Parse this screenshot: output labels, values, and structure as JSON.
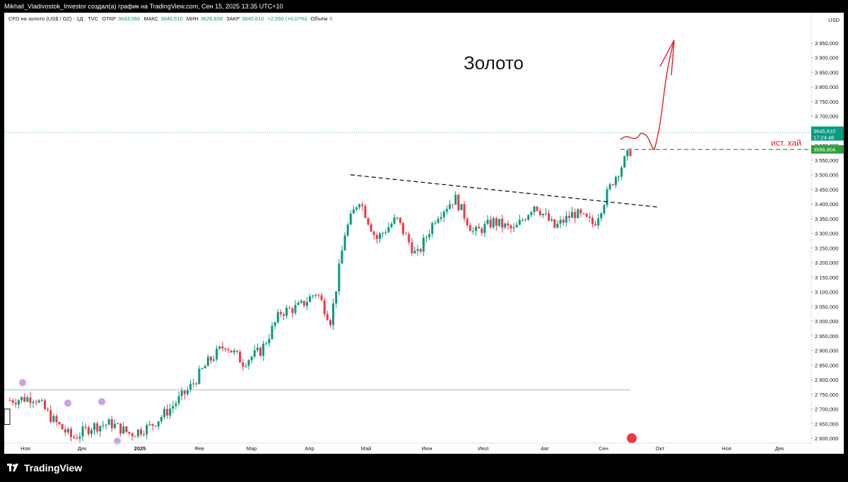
{
  "header": {
    "credit": "Mikhail_Vladivostok_Investor создал(а) график на TradingView.com, Сен 15, 2025 13:35 UTC+10"
  },
  "legend": {
    "symbol": "CFD на золото (US$ / OZ) · 1Д · TVC",
    "open_label": "ОТКР",
    "open": "3643,060",
    "high_label": "МАКС",
    "high": "3646,510",
    "low_label": "МИН",
    "low": "3626,839",
    "close_label": "ЗАКР",
    "close": "3645,610",
    "change": "+2,550 (+0,07%)",
    "volume_label": "Объем",
    "volume": "0"
  },
  "annotation": {
    "title": "Золото",
    "hist_high_label": "ист. хай"
  },
  "price_axis": {
    "currency": "USD",
    "current_price": "3645,610",
    "countdown": "17:24:48",
    "level_price": "3586,804"
  },
  "footer": {
    "brand": "TradingView",
    "logo_icon": "tradingview-logo-icon"
  },
  "colors": {
    "up": "#089981",
    "down": "#f23645",
    "annotation_red": "#e0202f",
    "hist_high_green": "#2e9e3e",
    "background": "#ffffff"
  },
  "chart_data": {
    "type": "candlestick",
    "title": "Золото",
    "y_unit": "USD",
    "ylim": [
      2580,
      3980
    ],
    "y_ticks": [
      2600,
      2650,
      2700,
      2750,
      2800,
      2850,
      2900,
      2950,
      3000,
      3050,
      3100,
      3150,
      3200,
      3250,
      3300,
      3350,
      3400,
      3450,
      3500,
      3550,
      3600,
      3650,
      3700,
      3750,
      3800,
      3850,
      3900,
      3950
    ],
    "x_ticks": [
      "Ноя",
      "Дек",
      "2025",
      "Фев",
      "Мар",
      "Апр",
      "Май",
      "Июн",
      "Июл",
      "Авг",
      "Сен",
      "Окт",
      "Ноя",
      "Дек"
    ],
    "close_path": [
      {
        "month": "Ноя",
        "close": 2740
      },
      {
        "month": "Ноя",
        "close": 2660
      },
      {
        "month": "Ноя",
        "close": 2600
      },
      {
        "month": "Дек",
        "close": 2640
      },
      {
        "month": "Дек",
        "close": 2650
      },
      {
        "month": "Дек",
        "close": 2615
      },
      {
        "month": "2025",
        "close": 2640
      },
      {
        "month": "2025",
        "close": 2700
      },
      {
        "month": "2025",
        "close": 2770
      },
      {
        "month": "Фев",
        "close": 2860
      },
      {
        "month": "Фев",
        "close": 2920
      },
      {
        "month": "Фев",
        "close": 2860
      },
      {
        "month": "Мар",
        "close": 2900
      },
      {
        "month": "Мар",
        "close": 3030
      },
      {
        "month": "Мар",
        "close": 3050
      },
      {
        "month": "Апр",
        "close": 3100
      },
      {
        "month": "Апр",
        "close": 3000
      },
      {
        "month": "Апр",
        "close": 3300
      },
      {
        "month": "Апр",
        "close": 3420
      },
      {
        "month": "Май",
        "close": 3280
      },
      {
        "month": "Май",
        "close": 3350
      },
      {
        "month": "Май",
        "close": 3220
      },
      {
        "month": "Июн",
        "close": 3360
      },
      {
        "month": "Июн",
        "close": 3420
      },
      {
        "month": "Июн",
        "close": 3300
      },
      {
        "month": "Июл",
        "close": 3340
      },
      {
        "month": "Июл",
        "close": 3310
      },
      {
        "month": "Июл",
        "close": 3400
      },
      {
        "month": "Авг",
        "close": 3320
      },
      {
        "month": "Авг",
        "close": 3370
      },
      {
        "month": "Авг",
        "close": 3330
      },
      {
        "month": "Сен",
        "close": 3480
      },
      {
        "month": "Сен",
        "close": 3590
      },
      {
        "month": "Сен",
        "close": 3645.61
      }
    ],
    "resistance_trendline": {
      "from": {
        "month": "Апр",
        "price": 3500
      },
      "to": {
        "month": "Окт",
        "price": 3390
      }
    },
    "hist_high_level": 3586.804,
    "current_price": 3645.61,
    "grey_level": 2765,
    "forecast_arrow_target": 3960
  }
}
